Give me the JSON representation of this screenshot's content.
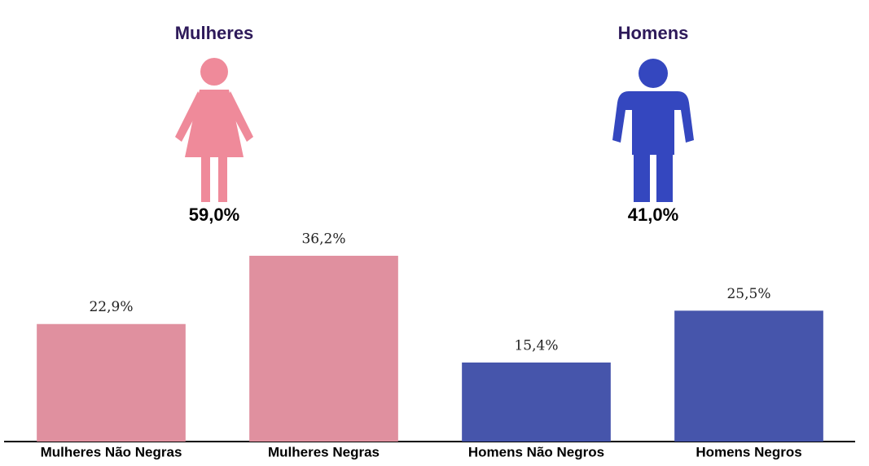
{
  "chart_data": [
    {
      "type": "pictogram",
      "categories": [
        "Mulheres",
        "Homens"
      ],
      "values": [
        59.0,
        41.0
      ],
      "value_labels": [
        "59,0%",
        "41,0%"
      ],
      "colors": [
        "#ef8a9a",
        "#3447bf"
      ]
    },
    {
      "type": "bar",
      "categories": [
        "Mulheres Não Negras",
        "Mulheres Negras",
        "Homens Não Negros",
        "Homens Negros"
      ],
      "values": [
        22.9,
        36.2,
        15.4,
        25.5
      ],
      "value_labels": [
        "22,9%",
        "36,2%",
        "15,4%",
        "25,5%"
      ],
      "colors": [
        "#e0909f",
        "#e0909f",
        "#4655ab",
        "#4655ab"
      ],
      "ylim": [
        0,
        40
      ]
    }
  ]
}
